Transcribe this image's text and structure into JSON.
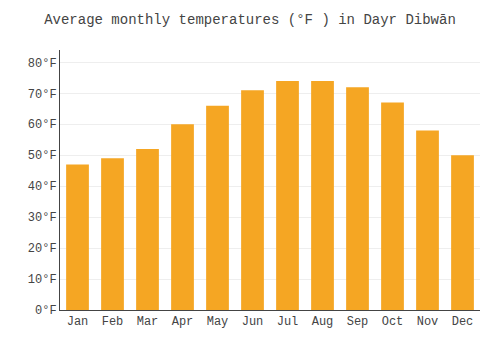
{
  "chart_data": {
    "type": "bar",
    "title": "Average monthly temperatures (°F ) in Dayr Dibwān",
    "categories": [
      "Jan",
      "Feb",
      "Mar",
      "Apr",
      "May",
      "Jun",
      "Jul",
      "Aug",
      "Sep",
      "Oct",
      "Nov",
      "Dec"
    ],
    "values": [
      47,
      49,
      52,
      60,
      66,
      71,
      74,
      74,
      72,
      67,
      58,
      50
    ],
    "color": "#F5A623",
    "ylim": [
      0,
      84
    ],
    "yticks": [
      {
        "value": 0,
        "label": "0°F"
      },
      {
        "value": 10,
        "label": "10°F"
      },
      {
        "value": 20,
        "label": "20°F"
      },
      {
        "value": 30,
        "label": "30°F"
      },
      {
        "value": 40,
        "label": "40°F"
      },
      {
        "value": 50,
        "label": "50°F"
      },
      {
        "value": 60,
        "label": "60°F"
      },
      {
        "value": 70,
        "label": "70°F"
      },
      {
        "value": 80,
        "label": "80°F"
      }
    ],
    "grid": true
  }
}
